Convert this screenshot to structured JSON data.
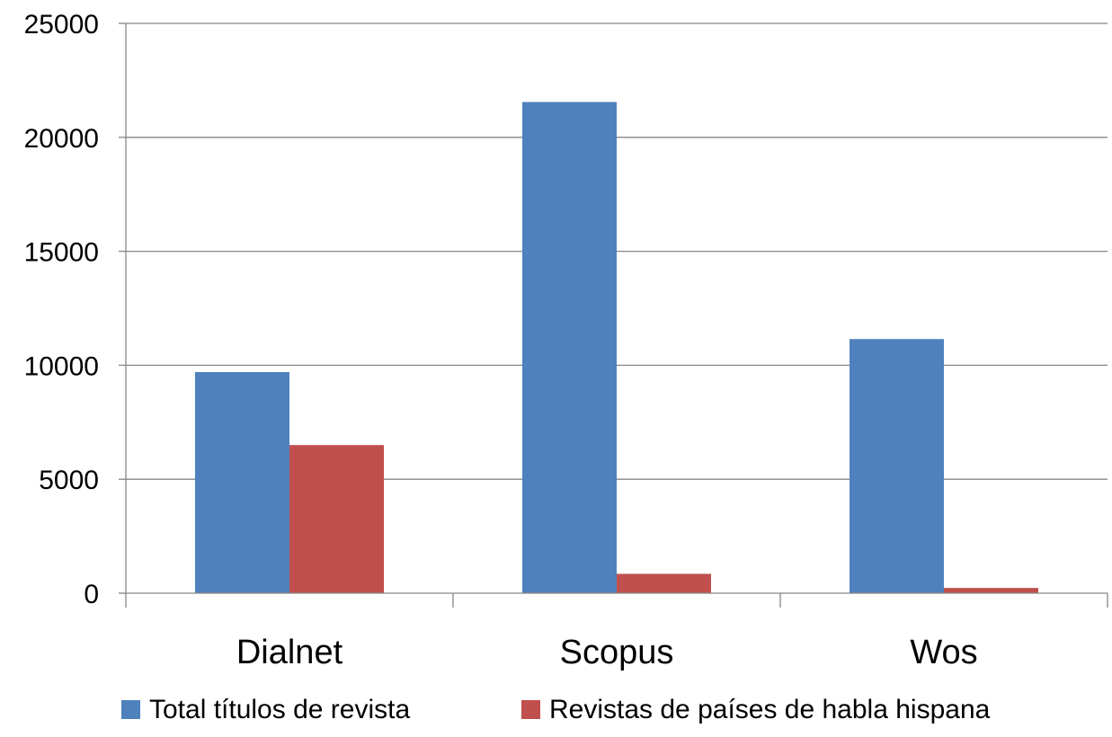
{
  "chart_data": {
    "type": "bar",
    "title": "",
    "xlabel": "",
    "ylabel": "",
    "categories": [
      "Dialnet",
      "Scopus",
      "Wos"
    ],
    "series": [
      {
        "name": "Total títulos de revista",
        "color": "#4f81bd",
        "values": [
          9700,
          21550,
          11150
        ]
      },
      {
        "name": "Revistas de países de habla hispana",
        "color": "#c0504d",
        "values": [
          6500,
          850,
          230
        ]
      }
    ],
    "ylim": [
      0,
      25000
    ],
    "yticks": [
      0,
      5000,
      10000,
      15000,
      20000,
      25000
    ],
    "ytick_labels": [
      "0",
      "5000",
      "10000",
      "15000",
      "20000",
      "25000"
    ],
    "grid": true,
    "legend_position": "bottom"
  }
}
